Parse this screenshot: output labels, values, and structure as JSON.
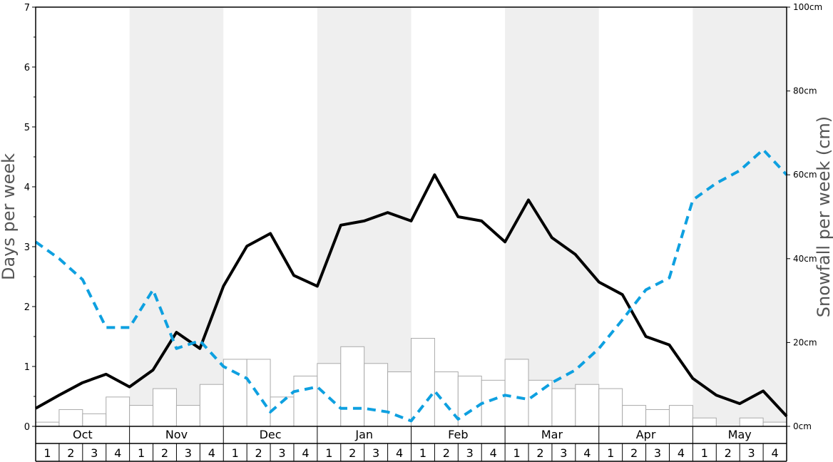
{
  "chart_data": {
    "type": "bar+line",
    "title": "",
    "y_left": {
      "label": "Days per week",
      "ylim": [
        0,
        7
      ],
      "ticks": [
        "0",
        "1",
        "2",
        "3",
        "4",
        "5",
        "6",
        "7"
      ]
    },
    "y_right": {
      "label": "Snowfall per week (cm)",
      "ylim": [
        0,
        100
      ],
      "ticks": [
        "0cm",
        "20cm",
        "40cm",
        "60cm",
        "80cm",
        "100cm"
      ]
    },
    "months": [
      "Oct",
      "Nov",
      "Dec",
      "Jan",
      "Feb",
      "Mar",
      "Apr",
      "May"
    ],
    "weeks": [
      "1",
      "2",
      "3",
      "4"
    ],
    "shaded_months": [
      "Nov",
      "Jan",
      "Mar",
      "May"
    ],
    "snowfall_bars_cm": [
      1,
      4,
      3,
      7,
      5,
      9,
      5,
      10,
      16,
      16,
      7,
      12,
      15,
      19,
      15,
      13,
      21,
      13,
      12,
      11,
      16,
      11,
      9,
      10,
      9,
      5,
      4,
      5,
      2,
      0,
      2,
      1
    ],
    "series": [
      {
        "style": "solid-black",
        "axis": "left",
        "values": [
          0.3,
          0.52,
          0.73,
          0.87,
          0.66,
          0.94,
          1.57,
          1.3,
          2.34,
          3.01,
          3.22,
          2.52,
          2.34,
          3.36,
          3.43,
          3.57,
          3.43,
          4.2,
          3.5,
          3.43,
          3.08,
          3.78,
          3.15,
          2.87,
          2.41,
          2.2,
          1.5,
          1.36,
          0.8,
          0.52,
          0.38,
          0.59,
          0.17
        ]
      },
      {
        "style": "dashed-blue",
        "axis": "left",
        "values": [
          3.08,
          2.8,
          2.45,
          1.65,
          1.65,
          2.28,
          1.3,
          1.43,
          1.0,
          0.8,
          0.24,
          0.58,
          0.66,
          0.3,
          0.3,
          0.24,
          0.09,
          0.59,
          0.12,
          0.38,
          0.52,
          0.45,
          0.73,
          0.94,
          1.3,
          1.78,
          2.28,
          2.48,
          3.78,
          4.06,
          4.27,
          4.62,
          4.2
        ]
      }
    ],
    "grid": false,
    "legend": "none",
    "colors": {
      "shade": "#efefef",
      "bar_fill": "#ffffff",
      "bar_stroke": "#aaaaaa",
      "solid_line": "#000000",
      "dashed_line": "#0ea0e0"
    }
  }
}
